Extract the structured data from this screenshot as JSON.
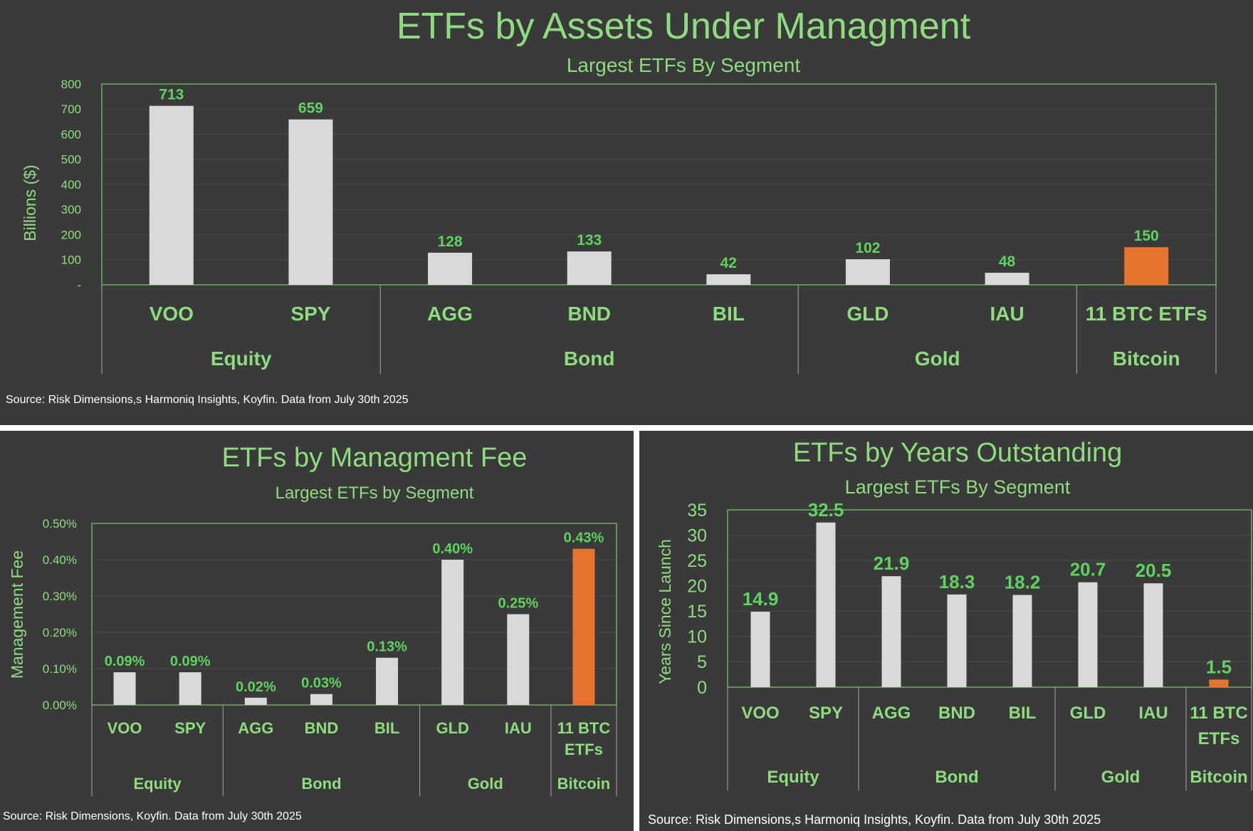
{
  "colors": {
    "bar": "#d9d9d9",
    "highlight": "#e8732f",
    "panel_bg": "#3a3a3a",
    "title": "#8fdc80",
    "label": "#5fd35f",
    "frame": "#7cc86e",
    "grid": "#4a4a4a"
  },
  "chart_data": [
    {
      "id": "aum",
      "type": "bar",
      "title": "ETFs by Assets Under Managment",
      "subtitle": "Largest ETFs By Segment",
      "ylabel": "Billions ($)",
      "ylim": [
        0,
        800
      ],
      "yticks": [
        0,
        100,
        200,
        300,
        400,
        500,
        600,
        700,
        800
      ],
      "ytick_labels": [
        "-",
        "100",
        "200",
        "300",
        "400",
        "500",
        "600",
        "700",
        "800"
      ],
      "categories": [
        "VOO",
        "SPY",
        "AGG",
        "BND",
        "BIL",
        "GLD",
        "IAU",
        "11 BTC ETFs"
      ],
      "values": [
        713,
        659,
        128,
        133,
        42,
        102,
        48,
        150
      ],
      "value_labels": [
        "713",
        "659",
        "128",
        "133",
        "42",
        "102",
        "48",
        "150"
      ],
      "highlight": [
        7
      ],
      "segments": [
        {
          "name": "Equity",
          "count": 2
        },
        {
          "name": "Bond",
          "count": 3
        },
        {
          "name": "Gold",
          "count": 2
        },
        {
          "name": "Bitcoin",
          "count": 1
        }
      ],
      "source": "Source: Risk Dimensions,s Harmoniq Insights, Koyfin. Data from July 30th 2025"
    },
    {
      "id": "fee",
      "type": "bar",
      "title": "ETFs by Managment Fee",
      "subtitle": "Largest ETFs by Segment",
      "ylabel": "Management Fee",
      "ylim": [
        0,
        0.5
      ],
      "yticks": [
        0,
        0.1,
        0.2,
        0.3,
        0.4,
        0.5
      ],
      "ytick_labels": [
        "0.00%",
        "0.10%",
        "0.20%",
        "0.30%",
        "0.40%",
        "0.50%"
      ],
      "categories": [
        "VOO",
        "SPY",
        "AGG",
        "BND",
        "BIL",
        "GLD",
        "IAU",
        "11 BTC ETFs"
      ],
      "values": [
        0.09,
        0.09,
        0.02,
        0.03,
        0.13,
        0.4,
        0.25,
        0.43
      ],
      "value_labels": [
        "0.09%",
        "0.09%",
        "0.02%",
        "0.03%",
        "0.13%",
        "0.40%",
        "0.25%",
        "0.43%"
      ],
      "highlight": [
        7
      ],
      "segments": [
        {
          "name": "Equity",
          "count": 2
        },
        {
          "name": "Bond",
          "count": 3
        },
        {
          "name": "Gold",
          "count": 2
        },
        {
          "name": "Bitcoin",
          "count": 1
        }
      ],
      "source": "Source: Risk Dimensions, Koyfin. Data from July 30th 2025"
    },
    {
      "id": "years",
      "type": "bar",
      "title": "ETFs by Years Outstanding",
      "subtitle": "Largest ETFs By Segment",
      "ylabel": "Years Since Launch",
      "ylim": [
        0,
        35
      ],
      "yticks": [
        0,
        5,
        10,
        15,
        20,
        25,
        30,
        35
      ],
      "ytick_labels": [
        "0",
        "5",
        "10",
        "15",
        "20",
        "25",
        "30",
        "35"
      ],
      "categories": [
        "VOO",
        "SPY",
        "AGG",
        "BND",
        "BIL",
        "GLD",
        "IAU",
        "11 BTC ETFs"
      ],
      "values": [
        14.9,
        32.5,
        21.9,
        18.3,
        18.2,
        20.7,
        20.5,
        1.5
      ],
      "value_labels": [
        "14.9",
        "32.5",
        "21.9",
        "18.3",
        "18.2",
        "20.7",
        "20.5",
        "1.5"
      ],
      "highlight": [
        7
      ],
      "segments": [
        {
          "name": "Equity",
          "count": 2
        },
        {
          "name": "Bond",
          "count": 3
        },
        {
          "name": "Gold",
          "count": 2
        },
        {
          "name": "Bitcoin",
          "count": 1
        }
      ],
      "source": "Source: Risk Dimensions,s Harmoniq Insights, Koyfin. Data from July 30th 2025"
    }
  ]
}
